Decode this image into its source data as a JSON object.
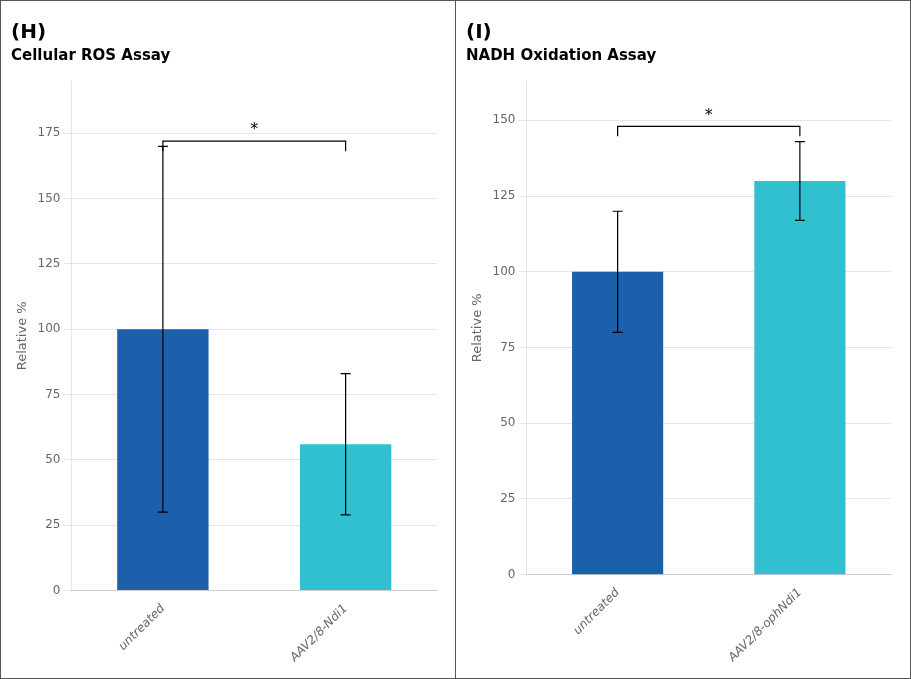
{
  "chart_data": [
    {
      "type": "bar",
      "title": "(H)",
      "subtitle": "Cellular ROS Assay",
      "categories": [
        "untreated",
        "AAV2/8-Ndi1"
      ],
      "values": [
        100,
        56
      ],
      "errors_up": [
        70,
        27
      ],
      "errors_dn": [
        70,
        27
      ],
      "colors": [
        "#1c5faa",
        "#30c0d0"
      ],
      "y_label": "Relative %",
      "ylim": [
        0,
        195
      ],
      "yticks": [
        0,
        25,
        50,
        75,
        100,
        125,
        150,
        175
      ],
      "grid": true,
      "annotations": [
        {
          "text": "*",
          "y": 172,
          "from": "untreated",
          "to": "AAV2/8-Ndi1"
        }
      ]
    },
    {
      "type": "bar",
      "title": "(I)",
      "subtitle": "NADH Oxidation Assay",
      "categories": [
        "untreated",
        "AAV2/8-ophNdi1"
      ],
      "values": [
        100,
        130
      ],
      "errors_up": [
        20,
        13
      ],
      "errors_dn": [
        20,
        13
      ],
      "colors": [
        "#1c5faa",
        "#30c0d0"
      ],
      "y_label": "Relative %",
      "ylim": [
        0,
        163
      ],
      "yticks": [
        0,
        25,
        50,
        75,
        100,
        125,
        150
      ],
      "grid": true,
      "annotations": [
        {
          "text": "*",
          "y": 148,
          "from": "untreated",
          "to": "AAV2/8-ophNdi1"
        }
      ]
    }
  ]
}
